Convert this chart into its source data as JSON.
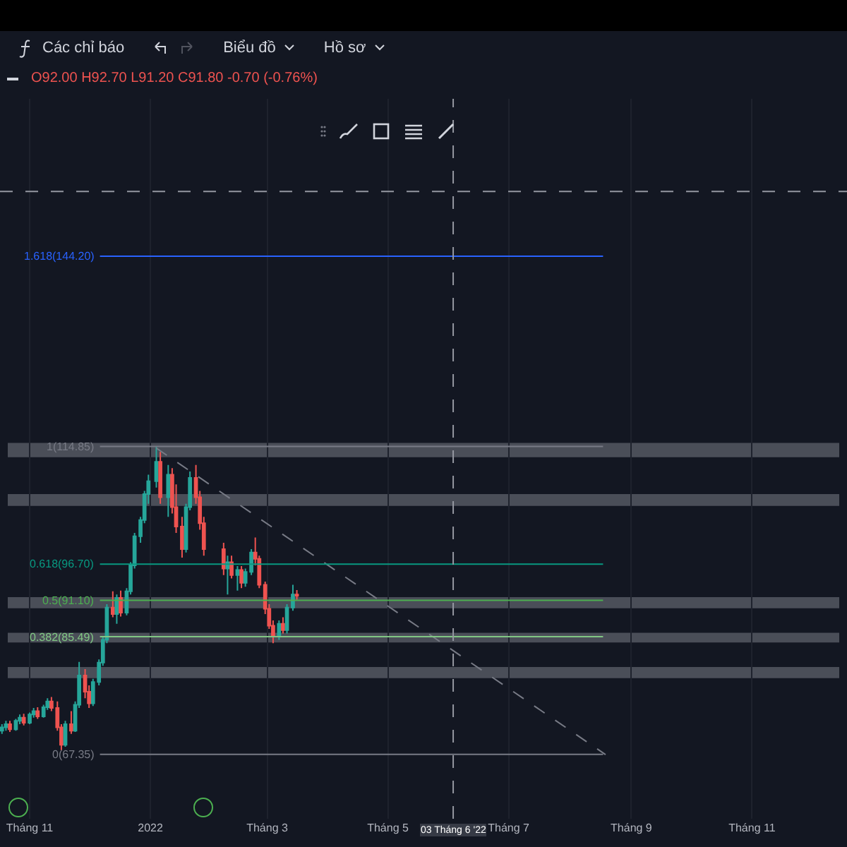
{
  "chart_data": {
    "type": "candlestick",
    "annotations": [
      "Các chỉ báo",
      "Biểu đồ",
      "Hồ sơ",
      "O92.00 H92.70 L91.20 C91.80 -0.70 (-0.76%)"
    ],
    "x": [
      "2021-10-18",
      "2021-10-20",
      "2021-10-22",
      "2021-10-25",
      "2021-10-27",
      "2021-10-29",
      "2021-11-01",
      "2021-11-03",
      "2021-11-05",
      "2021-11-08",
      "2021-11-10",
      "2021-11-12",
      "2021-11-15",
      "2021-11-17",
      "2021-11-19",
      "2021-11-22",
      "2021-11-24",
      "2021-11-26",
      "2021-11-29",
      "2021-12-01",
      "2021-12-03",
      "2021-12-06",
      "2021-12-08",
      "2021-12-10",
      "2021-12-13",
      "2021-12-15",
      "2021-12-17",
      "2021-12-20",
      "2021-12-22",
      "2021-12-24",
      "2021-12-27",
      "2021-12-29",
      "2021-12-31",
      "2022-01-04",
      "2022-01-06",
      "2022-01-10",
      "2022-01-12",
      "2022-01-14",
      "2022-01-17",
      "2022-01-19",
      "2022-01-21",
      "2022-01-24",
      "2022-01-26",
      "2022-01-28",
      "2022-02-07",
      "2022-02-09",
      "2022-02-11",
      "2022-02-14",
      "2022-02-16",
      "2022-02-18",
      "2022-02-21",
      "2022-02-23",
      "2022-02-25",
      "2022-02-28",
      "2022-03-02",
      "2022-03-04",
      "2022-03-07",
      "2022-03-09",
      "2022-03-11",
      "2022-03-14",
      "2022-03-16"
    ],
    "ohlc": [
      [
        71.0,
        72.0,
        70.5,
        71.5
      ],
      [
        71.5,
        72.5,
        71.0,
        72.0
      ],
      [
        72.0,
        72.5,
        70.8,
        71.2
      ],
      [
        71.2,
        72.8,
        71.0,
        72.5
      ],
      [
        72.5,
        73.5,
        72.0,
        73.0
      ],
      [
        73.0,
        73.6,
        71.8,
        72.2
      ],
      [
        72.2,
        73.8,
        72.0,
        73.5
      ],
      [
        73.5,
        74.5,
        73.0,
        74.0
      ],
      [
        74.0,
        74.6,
        72.8,
        73.2
      ],
      [
        73.2,
        75.0,
        73.0,
        74.6
      ],
      [
        74.6,
        76.0,
        74.2,
        75.5
      ],
      [
        75.5,
        76.2,
        74.0,
        74.5
      ],
      [
        74.5,
        75.5,
        71.0,
        71.5
      ],
      [
        71.5,
        72.0,
        68.0,
        68.8
      ],
      [
        68.8,
        72.5,
        68.5,
        72.0
      ],
      [
        72.0,
        74.0,
        70.5,
        71.0
      ],
      [
        71.0,
        75.5,
        70.8,
        75.0
      ],
      [
        75.0,
        81.6,
        74.5,
        79.5
      ],
      [
        79.5,
        80.5,
        76.0,
        77.0
      ],
      [
        77.0,
        78.0,
        74.5,
        75.2
      ],
      [
        75.2,
        79.0,
        74.8,
        78.5
      ],
      [
        78.5,
        82.0,
        78.0,
        81.5
      ],
      [
        81.5,
        85.5,
        81.0,
        85.0
      ],
      [
        85.0,
        90.5,
        84.5,
        90.0
      ],
      [
        90.0,
        92.5,
        88.5,
        89.0
      ],
      [
        89.0,
        92.0,
        87.5,
        91.5
      ],
      [
        91.5,
        92.6,
        88.6,
        89.2
      ],
      [
        89.2,
        93.0,
        88.8,
        92.5
      ],
      [
        92.5,
        97.0,
        92.0,
        96.5
      ],
      [
        96.5,
        101.5,
        96.0,
        101.0
      ],
      [
        101.0,
        104.0,
        100.0,
        103.5
      ],
      [
        103.5,
        108.0,
        103.0,
        107.5
      ],
      [
        107.5,
        110.5,
        106.0,
        109.5
      ],
      [
        109.5,
        114.85,
        108.5,
        112.5
      ],
      [
        112.5,
        114.0,
        106.0,
        107.0
      ],
      [
        107.0,
        112.0,
        104.0,
        110.5
      ],
      [
        110.5,
        111.5,
        104.5,
        105.5
      ],
      [
        105.5,
        109.0,
        101.5,
        102.5
      ],
      [
        102.5,
        104.0,
        97.7,
        99.0
      ],
      [
        99.0,
        106.0,
        98.5,
        105.5
      ],
      [
        105.5,
        111.0,
        105.0,
        110.0
      ],
      [
        110.0,
        112.0,
        106.0,
        107.0
      ],
      [
        107.0,
        108.0,
        102.0,
        103.0
      ],
      [
        103.0,
        104.0,
        98.0,
        99.0
      ],
      [
        99.0,
        100.0,
        95.0,
        96.0
      ],
      [
        96.0,
        98.0,
        92.0,
        97.0
      ],
      [
        97.0,
        98.0,
        94.5,
        95.0
      ],
      [
        95.0,
        96.4,
        92.6,
        95.8
      ],
      [
        95.8,
        96.4,
        93.0,
        93.8
      ],
      [
        93.8,
        96.0,
        93.2,
        95.5
      ],
      [
        95.5,
        99.0,
        95.0,
        98.5
      ],
      [
        98.5,
        100.8,
        96.5,
        97.5
      ],
      [
        97.5,
        98.0,
        93.0,
        93.5
      ],
      [
        93.5,
        94.0,
        89.0,
        89.8
      ],
      [
        89.8,
        90.5,
        86.7,
        87.2
      ],
      [
        87.2,
        88.0,
        84.5,
        85.5
      ],
      [
        85.5,
        88.0,
        85.0,
        87.5
      ],
      [
        87.5,
        88.5,
        86.0,
        86.5
      ],
      [
        86.5,
        90.5,
        86.0,
        90.0
      ],
      [
        90.0,
        93.5,
        89.5,
        92.0
      ],
      [
        92.0,
        92.7,
        91.2,
        91.8
      ]
    ],
    "series": [
      {
        "type": "line",
        "x": [
          "2022-01-04",
          "2022-08-19"
        ],
        "values": [
          114.6,
          67.3
        ],
        "color": "#787b86",
        "line_style": "dashed"
      }
    ],
    "ref_lines": [
      {
        "axis": "y",
        "value": 144.2,
        "label": "1.618(144.20)",
        "color": "#2962ff"
      },
      {
        "axis": "y",
        "value": 114.85,
        "label": "1(114.85)",
        "color": "#787b86"
      },
      {
        "axis": "y",
        "value": 96.7,
        "label": "0.618(96.70)",
        "color": "#089981"
      },
      {
        "axis": "y",
        "value": 91.1,
        "label": "0.5(91.10)",
        "color": "#4caf50"
      },
      {
        "axis": "y",
        "value": 85.49,
        "label": "0.382(85.49)",
        "color": "#81c784"
      },
      {
        "axis": "y",
        "value": 67.35,
        "label": "0(67.35)",
        "color": "#787b86"
      },
      {
        "axis": "x",
        "value": "2022-06-03",
        "label": "03 Tháng 6 '22",
        "color": "#9598a1",
        "line_style": "dashed"
      },
      {
        "axis": "y",
        "value": 154.2,
        "label": null,
        "color": "#9598a1",
        "line_style": "dashed"
      }
    ],
    "bands": [
      {
        "axis": "y",
        "from": 113.3,
        "to": 115.3,
        "color": "#b2b5be"
      },
      {
        "axis": "y",
        "from": 105.8,
        "to": 107.4,
        "color": "#b2b5be"
      },
      {
        "axis": "y",
        "from": 90.0,
        "to": 91.5,
        "color": "#b2b5be"
      },
      {
        "axis": "y",
        "from": 84.7,
        "to": 86.0,
        "color": "#b2b5be"
      },
      {
        "axis": "y",
        "from": 79.2,
        "to": 80.7,
        "color": "#b2b5be"
      }
    ],
    "xlim": [
      "2021-10-17",
      "2022-12-19"
    ],
    "xticks": [
      {
        "value": "2021-11-01",
        "label": "Tháng 11"
      },
      {
        "value": "2022-01-01",
        "label": "2022"
      },
      {
        "value": "2022-03-01",
        "label": "Tháng 3"
      },
      {
        "value": "2022-05-01",
        "label": "Tháng 5"
      },
      {
        "value": "2022-07-01",
        "label": "Tháng 7"
      },
      {
        "value": "2022-09-01",
        "label": "Tháng 9"
      },
      {
        "value": "2022-11-01",
        "label": "Tháng 11"
      }
    ],
    "ylim": [
      57.4,
      168.5
    ],
    "tick_labels": "x",
    "grid": "x",
    "legend": false
  }
}
